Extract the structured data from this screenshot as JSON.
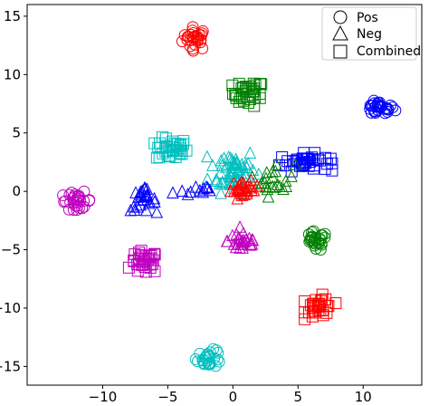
{
  "chart_data": {
    "type": "scatter",
    "title": "",
    "xlabel": "",
    "ylabel": "",
    "xlim": [
      -15.8,
      14.5
    ],
    "ylim": [
      -16.6,
      16.0
    ],
    "x_ticks": [
      -10,
      -5,
      0,
      5,
      10
    ],
    "x_tick_labels": [
      "−10",
      "−5",
      "0",
      "5",
      "10"
    ],
    "y_ticks": [
      15,
      10,
      5,
      0,
      -5,
      -10,
      -15
    ],
    "y_tick_labels": [
      "15",
      "10",
      "5",
      "0",
      "−5",
      "−10",
      "−15"
    ],
    "grid": false,
    "legend_position": "top-right",
    "legend": [
      {
        "label": "Pos",
        "marker": "circle"
      },
      {
        "label": "Neg",
        "marker": "triangle"
      },
      {
        "label": "Combined",
        "marker": "square"
      }
    ],
    "clusters": [
      {
        "color": "#ff0000",
        "marker": "circle",
        "center": [
          -2.9,
          13.1
        ],
        "spread": [
          0.8,
          0.8
        ],
        "count": 28
      },
      {
        "color": "#008000",
        "marker": "square",
        "center": [
          1.2,
          8.4
        ],
        "spread": [
          1.0,
          0.9
        ],
        "count": 35
      },
      {
        "color": "#0000ff",
        "marker": "circle",
        "center": [
          11.2,
          7.1
        ],
        "spread": [
          1.0,
          0.5
        ],
        "count": 30
      },
      {
        "color": "#00bfbf",
        "marker": "square",
        "center": [
          -4.7,
          3.6
        ],
        "spread": [
          1.0,
          0.8
        ],
        "count": 35
      },
      {
        "color": "#00bfbf",
        "marker": "triangle",
        "center": [
          0.0,
          1.8
        ],
        "spread": [
          1.5,
          1.6
        ],
        "count": 60
      },
      {
        "color": "#0000ff",
        "marker": "square",
        "center": [
          5.5,
          2.5
        ],
        "spread": [
          1.6,
          0.6
        ],
        "count": 40
      },
      {
        "color": "#008000",
        "marker": "triangle",
        "center": [
          3.2,
          1.0
        ],
        "spread": [
          1.3,
          1.2
        ],
        "count": 22
      },
      {
        "color": "#ff0000",
        "marker": "triangle",
        "center": [
          0.9,
          0.1
        ],
        "spread": [
          0.9,
          0.6
        ],
        "count": 28
      },
      {
        "color": "#bf00bf",
        "marker": "circle",
        "center": [
          -12.0,
          -0.8
        ],
        "spread": [
          1.0,
          0.6
        ],
        "count": 30
      },
      {
        "color": "#0000ff",
        "marker": "triangle",
        "center": [
          -6.9,
          -0.8
        ],
        "spread": [
          0.8,
          0.8
        ],
        "count": 26
      },
      {
        "color": "#0000ff",
        "marker": "triangle",
        "center": [
          -3.0,
          0.0
        ],
        "spread": [
          1.7,
          0.5
        ],
        "count": 12
      },
      {
        "color": "#bf00bf",
        "marker": "triangle",
        "center": [
          0.8,
          -4.3
        ],
        "spread": [
          1.0,
          0.9
        ],
        "count": 26
      },
      {
        "color": "#008000",
        "marker": "circle",
        "center": [
          6.3,
          -4.3
        ],
        "spread": [
          0.8,
          0.7
        ],
        "count": 28
      },
      {
        "color": "#bf00bf",
        "marker": "square",
        "center": [
          -6.8,
          -6.1
        ],
        "spread": [
          0.9,
          0.8
        ],
        "count": 35
      },
      {
        "color": "#ff0000",
        "marker": "square",
        "center": [
          6.7,
          -9.9
        ],
        "spread": [
          0.9,
          0.8
        ],
        "count": 32
      },
      {
        "color": "#00bfbf",
        "marker": "circle",
        "center": [
          -1.8,
          -14.3
        ],
        "spread": [
          0.8,
          0.6
        ],
        "count": 28
      }
    ]
  }
}
